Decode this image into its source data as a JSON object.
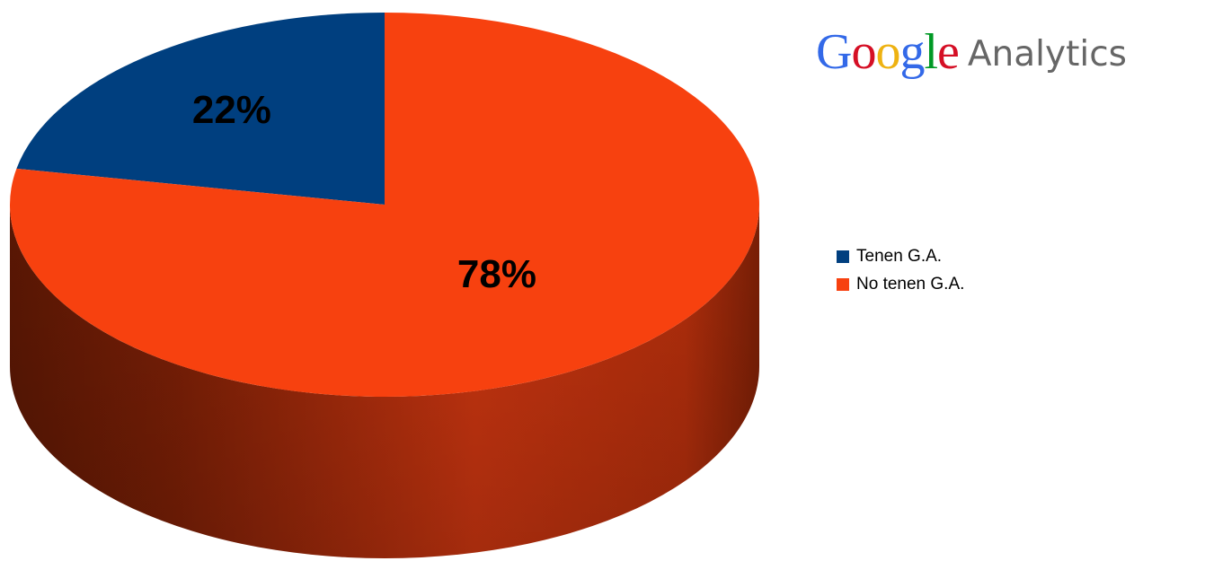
{
  "logo": {
    "text": "Google",
    "letter_colors": [
      "#3369e8",
      "#d50f25",
      "#eeb211",
      "#3369e8",
      "#009925",
      "#d50f25"
    ],
    "product": "Analytics"
  },
  "chart_data": {
    "type": "pie",
    "style": "3d",
    "labels": [
      "Tenen G.A.",
      "No tenen G.A."
    ],
    "values": [
      22,
      78
    ],
    "data_labels": [
      "22%",
      "78%"
    ],
    "colors": [
      "#003f7f",
      "#f7410f"
    ],
    "legend_position": "right"
  }
}
